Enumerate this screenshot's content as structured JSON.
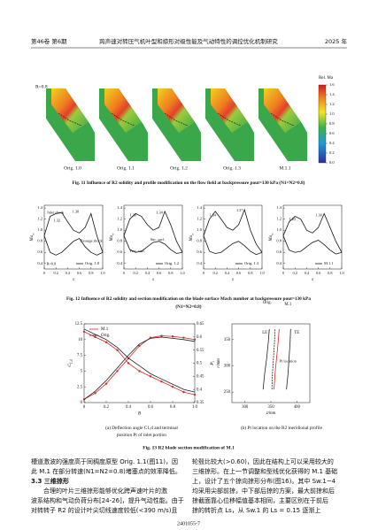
{
  "header": {
    "left": "第46卷 第6期",
    "title": "跨声速对转压气机叶型和掠形对级性能及气动特性的调控优化机制研究",
    "right": "2025 年"
  },
  "figure11": {
    "speed_label": "R=0.8",
    "blades": [
      "Orig. 1.0",
      "Orig. 1.1",
      "Orig. 1.2",
      "Orig. 1.3",
      "M.1.1"
    ],
    "colorbar": {
      "title": "Rel. Ma",
      "lim": [
        0,
        1.6
      ],
      "ticks": [
        {
          "value": 0,
          "label": "0.0"
        },
        0.2,
        0.4,
        0.6,
        0.8,
        {
          "value": 1,
          "label": "1.0"
        },
        1.2,
        1.4,
        1.6
      ]
    },
    "caption": "Fig. 11   Influence of R2 solidity and profile modification on the flow field at backpressure pout=130 kPa (N1=N2=0.8)"
  },
  "figure12": {
    "xlim": [
      0,
      1
    ],
    "ylim": [
      0.3,
      1.45
    ],
    "xticks": [
      0,
      0.2,
      0.4,
      0.6,
      0.8,
      {
        "value": 1,
        "label": "1.0"
      }
    ],
    "yticks": [
      0.4,
      0.6,
      0.8,
      {
        "value": 1,
        "label": "1.0"
      },
      1.2,
      1.4
    ],
    "xlabel": "s",
    "ylabel": {
      "main": "Ma",
      "sub": "is"
    },
    "x": [
      0,
      0.1,
      0.2,
      0.3,
      0.4,
      0.5,
      0.6,
      0.7,
      0.8,
      0.9,
      1
    ],
    "panels": [
      {
        "name": "Orig. 1.0",
        "suction": [
          0.9,
          1.25,
          1.3,
          1.32,
          1.15,
          1.0,
          0.95,
          1.05,
          1.3,
          0.9,
          0.6
        ],
        "pressure": [
          0.9,
          0.6,
          0.55,
          0.6,
          0.7,
          0.8,
          0.85,
          0.7,
          0.6,
          0.55,
          0.6
        ],
        "annotations": [
          "Inlet shock",
          "1.32",
          "1.30",
          "Passage shock",
          "R=0.8"
        ]
      },
      {
        "name": "Orig. 1.2",
        "suction": [
          0.9,
          1.2,
          1.3,
          1.25,
          1.1,
          1.0,
          1.05,
          1.34,
          1.1,
          0.8,
          0.6
        ],
        "pressure": [
          0.9,
          0.65,
          0.6,
          0.62,
          0.7,
          0.78,
          0.8,
          0.75,
          0.65,
          0.58,
          0.6
        ],
        "annotations": [
          "1.30",
          "1.34",
          "Pres. surf.",
          "Suc. surf."
        ]
      },
      {
        "name": "Orig. 1.3",
        "suction": [
          0.9,
          1.2,
          1.34,
          1.2,
          1.05,
          1.0,
          1.1,
          1.37,
          1.0,
          0.75,
          0.6
        ],
        "pressure": [
          0.9,
          0.62,
          0.58,
          0.6,
          0.68,
          0.76,
          0.8,
          0.72,
          0.62,
          0.56,
          0.6
        ],
        "annotations": [
          "1.34",
          "1.37"
        ]
      },
      {
        "name": "M.1.1",
        "suction": [
          0.9,
          1.15,
          1.25,
          1.2,
          1.0,
          0.95,
          1.05,
          1.3,
          1.05,
          0.8,
          0.6
        ],
        "pressure": [
          0.9,
          0.64,
          0.6,
          0.62,
          0.7,
          0.78,
          0.82,
          0.74,
          0.64,
          0.57,
          0.6
        ],
        "annotations": [
          "1.25",
          "1.30"
        ]
      }
    ],
    "caption": [
      "Fig. 12   Influence of R2 solidity and section modification on the blade surface Mach number at backpressure pout=130 kPa",
      "(N1=N2=0.8)"
    ]
  },
  "figure13": {
    "a": {
      "xlim": [
        0,
        1
      ],
      "ylim": [
        0,
        12.5
      ],
      "y2lim": [
        0.35,
        0.65
      ],
      "xticks": [
        0,
        0.2,
        0.4,
        0.6,
        0.8,
        {
          "value": 1,
          "label": "1.0"
        }
      ],
      "yticks": [
        0,
        2.5,
        5,
        7.5,
        10,
        12.5
      ],
      "y2ticks": [
        0.35,
        0.4,
        0.45,
        0.5,
        0.55,
        0.6,
        0.65
      ],
      "xlabel": "B",
      "ylabel": {
        "main": "C",
        "sub": "1,d"
      },
      "y2label": {
        "main": "P",
        "sub": "t"
      },
      "x": [
        0,
        0.1,
        0.2,
        0.3,
        0.4,
        0.5,
        0.6,
        0.7,
        0.8,
        0.9,
        1
      ],
      "series": [
        {
          "name": "M.1",
          "color": "#d62728",
          "values": [
            0.5,
            1.5,
            3,
            5,
            7,
            9,
            10.3,
            10.6,
            10.5,
            10.3,
            10
          ]
        },
        {
          "name": "Orig.",
          "color": "#222222",
          "values": [
            0.5,
            1.8,
            3.5,
            5.5,
            7.5,
            9.3,
            10.2,
            10.4,
            10.2,
            10,
            9.7
          ]
        },
        {
          "name": "M.1",
          "color": "#d62728",
          "axis": "y2",
          "values": [
            0.62,
            0.6,
            0.58,
            0.55,
            0.5,
            0.47,
            0.45,
            0.43,
            0.41,
            0.39,
            0.38
          ]
        },
        {
          "name": "Orig.",
          "color": "#222222",
          "axis": "y2",
          "values": [
            0.63,
            0.61,
            0.59,
            0.56,
            0.52,
            0.49,
            0.46,
            0.44,
            0.42,
            0.4,
            0.39
          ]
        }
      ],
      "caption": [
        "(a) Deflection angle C1,d and terminal",
        "position Pt of inlet portion"
      ]
    },
    "b": {
      "xlim": [
        275,
        425
      ],
      "ylim": [
        230,
        380
      ],
      "xticks": [
        300,
        350,
        400
      ],
      "yticks": [
        250,
        300,
        350
      ],
      "xlabel": "z/mm",
      "ylabel": "r/mm",
      "curves": [
        {
          "name": "LE",
          "color": "#222222",
          "z": [
            335,
            338,
            342,
            345,
            347
          ],
          "r": [
            255,
            285,
            315,
            345,
            370
          ]
        },
        {
          "name": "TE",
          "color": "#222222",
          "z": [
            380,
            383,
            385,
            387,
            388
          ],
          "r": [
            255,
            285,
            315,
            345,
            370
          ]
        },
        {
          "name": "Orig.",
          "color": "#222222",
          "z": [
            352,
            353,
            355,
            357,
            358
          ],
          "r": [
            255,
            285,
            315,
            345,
            370
          ]
        },
        {
          "name": "M.1",
          "color": "#d62728",
          "z": [
            356,
            358,
            361,
            364,
            366
          ],
          "r": [
            255,
            285,
            315,
            345,
            370
          ]
        }
      ],
      "marker": "Pt location",
      "caption": "(b) Pt location on the R2 meridional profile"
    },
    "caption": "Fig. 13   R2 blade section modification of M.1"
  },
  "body": {
    "left": [
      "槽道激波的强度高于同稠度原型 Orig. 1.1(图11)，因",
      "此 M.1 在部分转速(N1=N2=0.8)堵塞点的效率降低。",
      "3.3  三维掠形",
      "　　合理的叶片三维掠形能够优化跨声速叶片的激",
      "波系结构和气动负荷分布[24-26]，提升气动性能。由于",
      "对转转子 R2 的设计叶尖切线速度较低(<390 m/s)且"
    ],
    "right": [
      "轮毂比较大(>0.60)，因此在结构上可以采用较大的",
      "三维掠形。在上一节调整和型线优化获得的 M.1 基础",
      "上，设计了五个掠向掠形分布(图16)。其中 Sw.1~4",
      "均采用尖部前掠，中下部后掠的方案，最大前掠和后",
      "掠截面靠心位移幅值基本相同，主要区别在于前后",
      "掠的转折点 Ls，从 Sw.1 的 Ls = 0.15 逐渐上"
    ]
  },
  "footer": "2401055-7"
}
